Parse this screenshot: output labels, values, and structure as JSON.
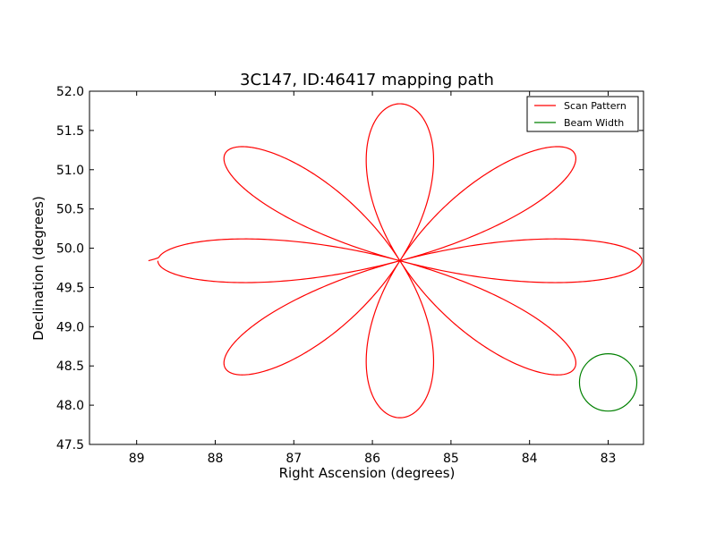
{
  "chart_data": {
    "type": "line",
    "title": "3C147, ID:46417 mapping path",
    "xlabel": "Right Ascension (degrees)",
    "ylabel": "Declination (degrees)",
    "xlim": [
      89.6,
      82.55
    ],
    "ylim": [
      47.5,
      52.0
    ],
    "x_inverted": true,
    "grid": false,
    "legend_position": "top-right",
    "xticks": [
      89,
      88,
      87,
      86,
      85,
      84,
      83
    ],
    "xtick_labels": [
      "89",
      "88",
      "87",
      "86",
      "85",
      "84",
      "83"
    ],
    "yticks": [
      47.5,
      48.0,
      48.5,
      49.0,
      49.5,
      50.0,
      50.5,
      51.0,
      51.5,
      52.0
    ],
    "ytick_labels": [
      "47.5",
      "48.0",
      "48.5",
      "49.0",
      "49.5",
      "50.0",
      "50.5",
      "51.0",
      "51.5",
      "52.0"
    ],
    "series": [
      {
        "name": "Scan Pattern",
        "color": "#ff0000",
        "shape": "rose",
        "center": [
          85.65,
          49.84
        ],
        "petals": 8,
        "amplitude_ra": 3.08,
        "amplitude_dec": 2.0,
        "tail_start": [
          88.85,
          49.84
        ]
      },
      {
        "name": "Beam Width",
        "color": "#008000",
        "shape": "circle",
        "center": [
          83.0,
          48.29
        ],
        "radius_deg": 0.365
      }
    ]
  }
}
